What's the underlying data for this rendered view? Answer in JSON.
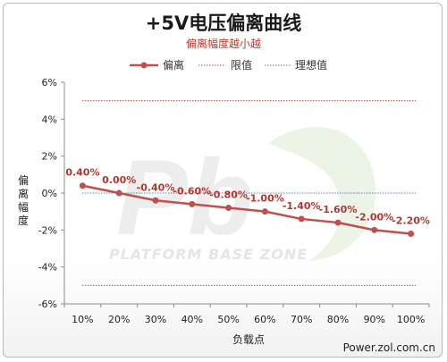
{
  "chart_data": {
    "type": "line",
    "title": "+5V电压偏离曲线",
    "subtitle": "偏离幅度越小越",
    "xlabel": "负载点",
    "ylabel": "偏离幅度",
    "categories": [
      "10%",
      "20%",
      "30%",
      "40%",
      "50%",
      "60%",
      "70%",
      "80%",
      "90%",
      "100%"
    ],
    "ylim": [
      -6,
      6
    ],
    "yticks": [
      "-6%",
      "-4%",
      "-2%",
      "0%",
      "2%",
      "4%",
      "6%"
    ],
    "series": [
      {
        "name": "偏离",
        "values": [
          0.4,
          0.0,
          -0.4,
          -0.6,
          -0.8,
          -1.0,
          -1.4,
          -1.6,
          -2.0,
          -2.2
        ],
        "labels": [
          "0.40%",
          "0.00%",
          "-0.40%",
          "-0.60%",
          "-0.80%",
          "-1.00%",
          "-1.40%",
          "-1.60%",
          "-2.00%",
          "-2.20%"
        ],
        "color": "#c0504d"
      }
    ],
    "reference_lines": [
      {
        "name": "限值",
        "values": [
          5,
          -5
        ],
        "color": "#c0504d",
        "style": "dotted"
      },
      {
        "name": "理想值",
        "value": 0,
        "color": "#4f81bd",
        "style": "dotted"
      }
    ],
    "legend": {
      "placement": "top",
      "items": [
        "偏离",
        "限值",
        "理想值"
      ]
    },
    "grid": false
  },
  "watermark": {
    "text": "PLATFORM BASE ZONE",
    "logo": "Pb"
  },
  "footer": {
    "source": "Power.zol.com.cn"
  }
}
